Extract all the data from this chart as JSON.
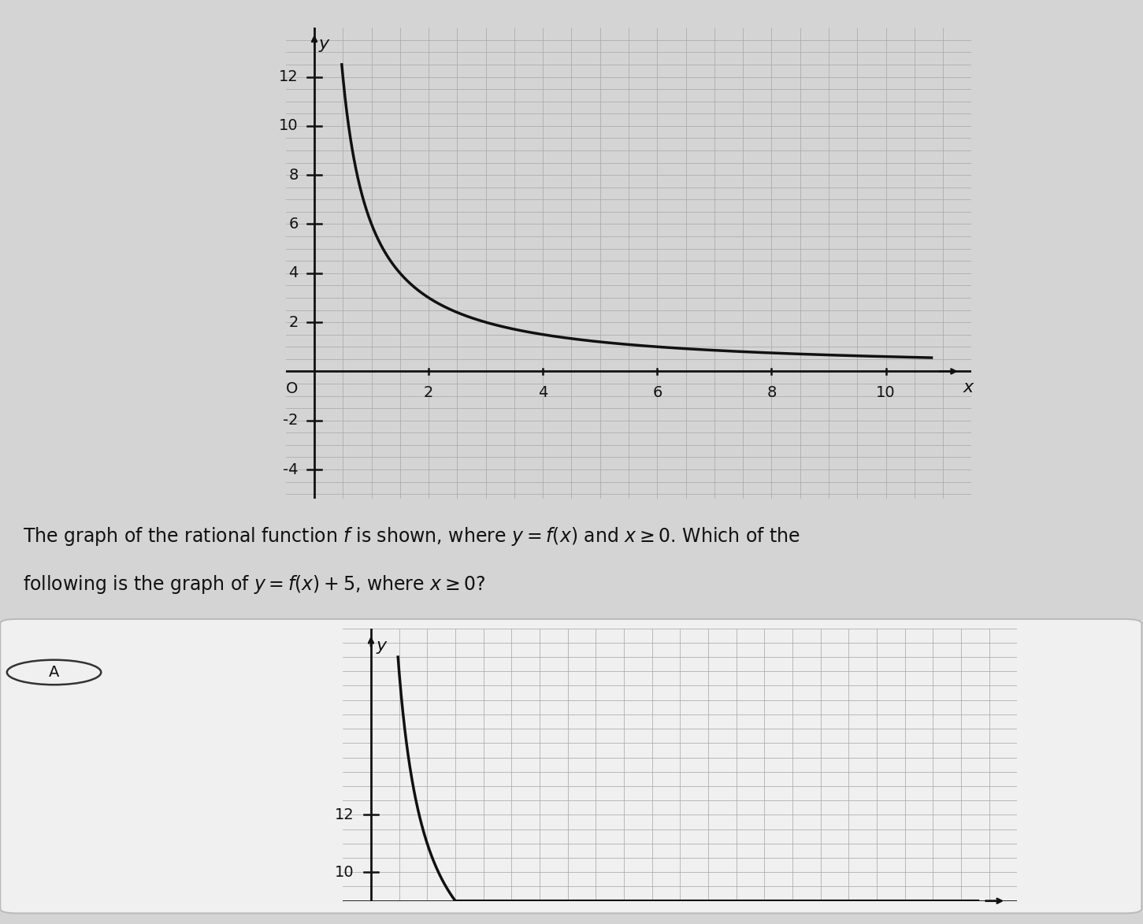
{
  "background_color": "#d4d4d4",
  "top_graph": {
    "xlim": [
      -0.5,
      11.5
    ],
    "ylim": [
      -5.2,
      14.0
    ],
    "xticks": [
      2,
      4,
      6,
      8,
      10
    ],
    "yticks": [
      -4,
      -2,
      2,
      4,
      6,
      8,
      10,
      12
    ],
    "function_k": 6,
    "x_start": 0.48,
    "x_end": 10.8,
    "curve_color": "#111111",
    "curve_linewidth": 2.5,
    "grid_color": "#aaaaaa",
    "grid_linewidth": 0.55,
    "axis_color": "#111111",
    "tick_label_fontsize": 14,
    "label_fontsize": 16
  },
  "text_line1": "The graph of the rational function $f$ is shown, where $y = f(x)$ and $x \\geq 0$. Which of the",
  "text_line2": "following is the graph of $y = f(x) + 5$, where $x \\geq 0$?",
  "text_fontsize": 17,
  "text_color": "#111111",
  "answer_label": "A",
  "bottom_graph": {
    "xlim": [
      -0.5,
      11.5
    ],
    "ylim": [
      9.0,
      18.5
    ],
    "ytick_show": [
      10,
      12
    ],
    "function_k": 6,
    "shift": 5,
    "x_start": 0.48,
    "x_end": 10.8,
    "curve_color": "#111111",
    "curve_linewidth": 2.5,
    "grid_color": "#aaaaaa",
    "grid_linewidth": 0.55,
    "axis_color": "#111111",
    "tick_label_fontsize": 14,
    "label_fontsize": 16
  },
  "white_box_color": "#f0f0f0",
  "box_edge_color": "#bbbbbb"
}
